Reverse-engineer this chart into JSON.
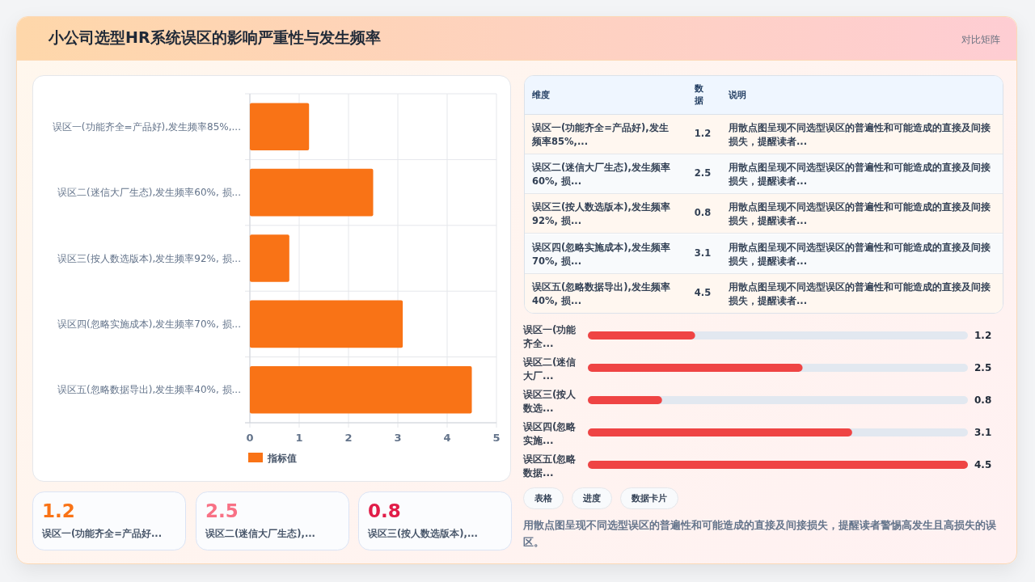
{
  "chart_data": [
    {
      "type": "other",
      "title": "小公司选型HR系统误区的影响严重性与发生频率",
      "subtitle": "对比矩阵"
    },
    {
      "type": "bar",
      "orientation": "horizontal",
      "categories": [
        "误区一(功能齐全=产品好),发生频率85%,...",
        "误区二(迷信大厂生态),发生频率60%, 损...",
        "误区三(按人数选版本),发生频率92%, 损...",
        "误区四(忽略实施成本),发生频率70%, 损...",
        "误区五(忽略数据导出),发生频率40%, 损..."
      ],
      "series": [
        {
          "name": "指标值",
          "color": "#f97316",
          "values": [
            1.2,
            2.5,
            0.8,
            3.1,
            4.5
          ]
        }
      ],
      "xlim": [
        0,
        5
      ],
      "xticks": [
        0,
        1,
        2,
        3,
        4,
        5
      ],
      "grid": true,
      "legend": "bottom"
    },
    {
      "type": "other",
      "categories": [
        "误区一(功能齐全=产品好),发生频率85%,...",
        "误区二(迷信大厂生态),发生频率60%, 损...",
        "误区三(按人数选版本),发生频率92%, 损...",
        "误区四(忽略实施成本),发生频率70%, 损...",
        "误区五(忽略数据导出),发生频率40%, 损..."
      ],
      "values": [
        1.2,
        2.5,
        0.8,
        3.1,
        4.5
      ],
      "data_labels": true,
      "annotations": [
        "维度",
        "数据",
        "说明",
        "用散点图呈现不同选型误区的普遍性和可能造成的直接及间接损失，提醒读者...",
        "用散点图呈现不同选型误区的普遍性和可能造成的直接及间接损失，提醒读者...",
        "用散点图呈现不同选型误区的普遍性和可能造成的直接及间接损失，提醒读者...",
        "用散点图呈现不同选型误区的普遍性和可能造成的直接及间接损失，提醒读者...",
        "用散点图呈现不同选型误区的普遍性和可能造成的直接及间接损失，提醒读者..."
      ]
    },
    {
      "type": "bar",
      "orientation": "horizontal",
      "categories": [
        "误区一(功能齐全...",
        "误区二(迷信大厂...",
        "误区三(按人数选...",
        "误区四(忽略实施...",
        "误区五(忽略数据..."
      ],
      "values": [
        1.2,
        2.5,
        0.8,
        3.1,
        4.5
      ],
      "color": "#ef4444",
      "data_labels": true
    },
    {
      "type": "other",
      "categories": [
        "误区一(功能齐全=产品好...",
        "误区二(迷信大厂生态),...",
        "误区三(按人数选版本),..."
      ],
      "values": [
        1.2,
        2.5,
        0.8
      ],
      "data_labels": true
    },
    {
      "type": "other",
      "annotations": [
        "表格",
        "进度",
        "数据卡片",
        "用散点图呈现不同选型误区的普遍性和可能造成的直接及间接损失，提醒读者警惕高发生且高损失的误区。"
      ]
    }
  ]
}
